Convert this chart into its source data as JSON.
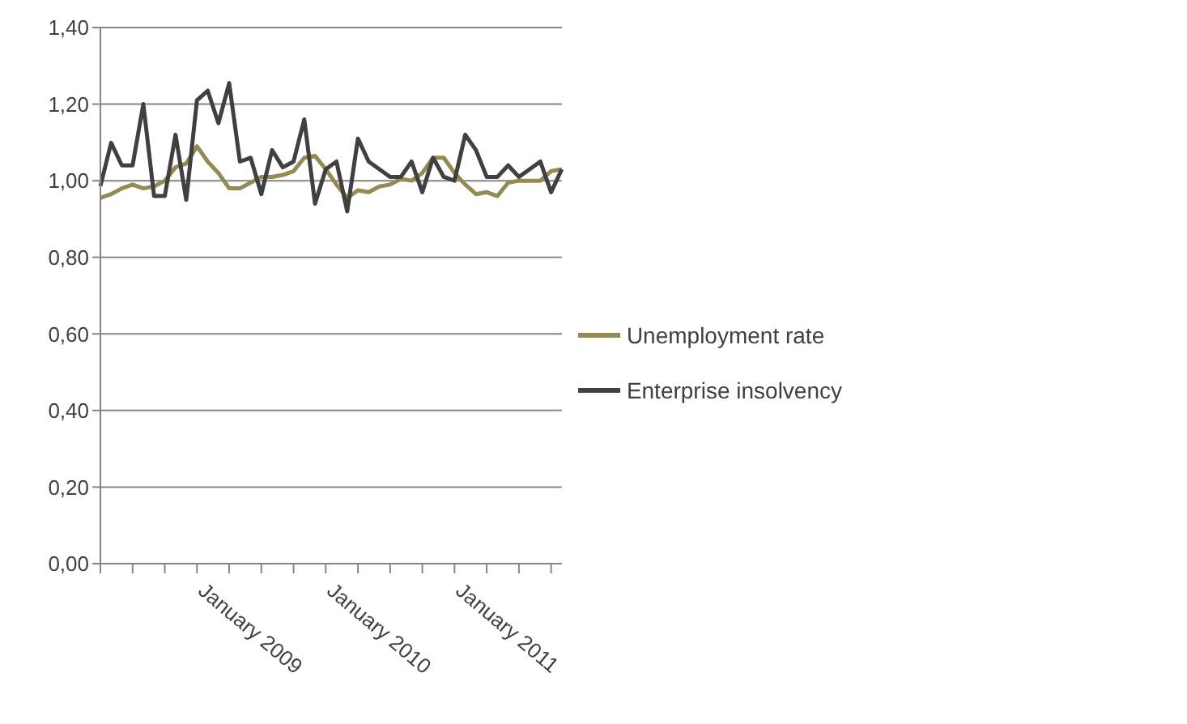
{
  "chart_data": {
    "type": "line",
    "categories": [
      null,
      null,
      null,
      null,
      null,
      null,
      null,
      null,
      null,
      "January 2009",
      null,
      null,
      null,
      null,
      null,
      null,
      null,
      null,
      null,
      null,
      null,
      "January 2010",
      null,
      null,
      null,
      null,
      null,
      null,
      null,
      null,
      null,
      null,
      null,
      "January 2011",
      null,
      null,
      null,
      null,
      null,
      null,
      null,
      null,
      null,
      null
    ],
    "series": [
      {
        "name": "Unemployment rate",
        "color": "#948a54",
        "values": [
          0.955,
          0.965,
          0.98,
          0.99,
          0.98,
          0.985,
          1.0,
          1.035,
          1.045,
          1.09,
          1.05,
          1.02,
          0.98,
          0.98,
          0.995,
          1.01,
          1.01,
          1.015,
          1.025,
          1.06,
          1.065,
          1.03,
          0.99,
          0.955,
          0.975,
          0.97,
          0.985,
          0.99,
          1.005,
          1.0,
          1.02,
          1.06,
          1.06,
          1.02,
          0.99,
          0.965,
          0.97,
          0.96,
          0.995,
          1.0,
          1.0,
          1.0,
          1.025,
          1.03
        ]
      },
      {
        "name": "Enterprise insolvency",
        "color": "#404040",
        "values": [
          0.986,
          1.099,
          1.04,
          1.04,
          1.2,
          0.96,
          0.96,
          1.12,
          0.95,
          1.21,
          1.235,
          1.15,
          1.255,
          1.05,
          1.06,
          0.965,
          1.08,
          1.035,
          1.05,
          1.16,
          0.94,
          1.03,
          1.05,
          0.92,
          1.11,
          1.05,
          1.03,
          1.01,
          1.01,
          1.05,
          0.97,
          1.06,
          1.01,
          1.0,
          1.12,
          1.08,
          1.01,
          1.01,
          1.04,
          1.01,
          1.03,
          1.05,
          0.97,
          1.03
        ]
      }
    ],
    "ylim": [
      0,
      1.4
    ],
    "yticks": [
      {
        "value": 0,
        "label": "0,00"
      },
      {
        "value": 0.2,
        "label": "0,20"
      },
      {
        "value": 0.4,
        "label": "0,40"
      },
      {
        "value": 0.6,
        "label": "0,60"
      },
      {
        "value": 0.8,
        "label": "0,80"
      },
      {
        "value": 1.0,
        "label": "1,00"
      },
      {
        "value": 1.2,
        "label": "1,20"
      },
      {
        "value": 1.4,
        "label": "1,40"
      }
    ],
    "grid": "y",
    "legend": "right",
    "marker": "none",
    "line_style": "solid"
  }
}
